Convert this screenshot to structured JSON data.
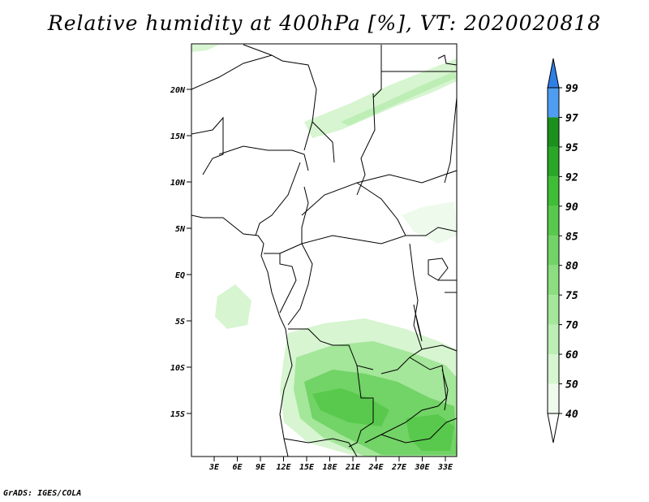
{
  "title": "Relative humidity at 400hPa [%], VT: 2020020818",
  "credit": "GrADS: IGES/COLA",
  "lat_ticks": [
    "20N",
    "15N",
    "10N",
    "5N",
    "EQ",
    "5S",
    "10S",
    "15S"
  ],
  "lon_ticks": [
    "3E",
    "6E",
    "9E",
    "12E",
    "15E",
    "18E",
    "21E",
    "24E",
    "27E",
    "30E",
    "33E"
  ],
  "colorbar": {
    "levels": [
      "40",
      "50",
      "60",
      "70",
      "75",
      "80",
      "85",
      "90",
      "92",
      "95",
      "97",
      "99"
    ],
    "colors": [
      "#eefbec",
      "#d6f5d0",
      "#bdeeb5",
      "#a4e69a",
      "#8cdd80",
      "#72d366",
      "#58c94c",
      "#3fbd36",
      "#2aa726",
      "#1b901c",
      "#4f9df2",
      "#2f7fe6",
      "#1c5fd0"
    ]
  },
  "colors": {
    "land_border": "#000000",
    "background": "#ffffff"
  }
}
